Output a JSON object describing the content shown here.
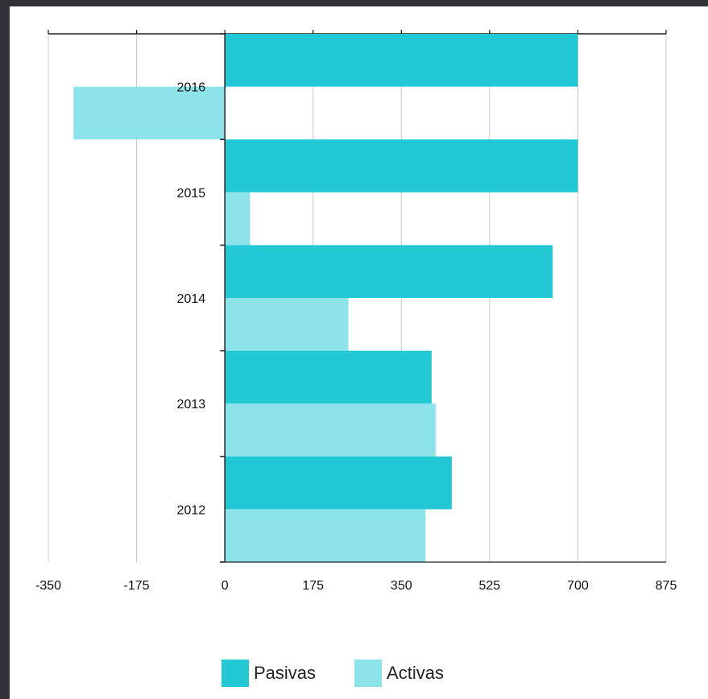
{
  "chart_data": {
    "type": "bar",
    "orientation": "horizontal",
    "categories": [
      "2016",
      "2015",
      "2014",
      "2013",
      "2012"
    ],
    "series": [
      {
        "name": "Pasivas",
        "color": "#22c9d4",
        "values": [
          700,
          700,
          650,
          410,
          450
        ]
      },
      {
        "name": "Activas",
        "color": "#8de3ea",
        "values": [
          -300,
          50,
          245,
          418,
          398
        ]
      }
    ],
    "xlim": [
      -350,
      875
    ],
    "x_ticks": [
      -350,
      -175,
      0,
      175,
      350,
      525,
      700,
      875
    ],
    "x_tick_labels": [
      "-350",
      "-175",
      "0",
      "175",
      "350",
      "525",
      "700",
      "875"
    ],
    "grid": "vertical",
    "legend_position": "bottom",
    "title": "",
    "xlabel": "",
    "ylabel": ""
  }
}
